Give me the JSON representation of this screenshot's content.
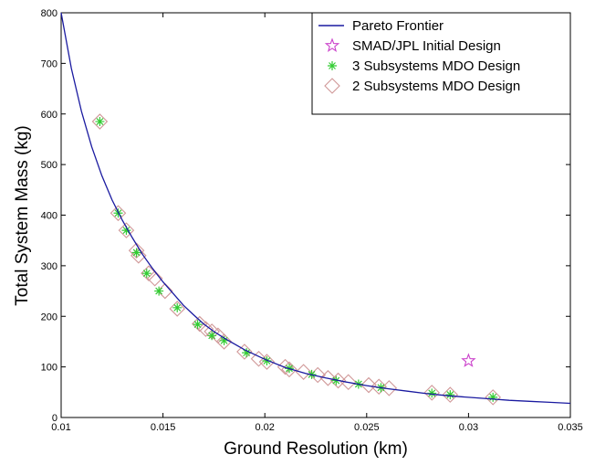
{
  "chart_data": {
    "type": "line",
    "title": "",
    "xlabel": "Ground Resolution (km)",
    "ylabel": "Total System Mass (kg)",
    "xlim": [
      0.01,
      0.035
    ],
    "ylim": [
      0,
      800
    ],
    "x_ticks": [
      "0.01",
      "0.015",
      "0.02",
      "0.025",
      "0.03",
      "0.035"
    ],
    "y_ticks": [
      "0",
      "100",
      "200",
      "300",
      "400",
      "500",
      "600",
      "700",
      "800"
    ],
    "x_tick_values": [
      0.01,
      0.015,
      0.02,
      0.025,
      0.03,
      0.035
    ],
    "y_tick_values": [
      0,
      100,
      200,
      300,
      400,
      500,
      600,
      700,
      800
    ],
    "grid": false,
    "legend_position": "top-right",
    "series": [
      {
        "name": "Pareto Frontier",
        "type": "line",
        "color": "#1a1aa0",
        "x": [
          0.01,
          0.0105,
          0.011,
          0.0115,
          0.012,
          0.0125,
          0.013,
          0.0135,
          0.014,
          0.0145,
          0.015,
          0.0155,
          0.016,
          0.0165,
          0.017,
          0.0175,
          0.018,
          0.019,
          0.02,
          0.021,
          0.022,
          0.023,
          0.024,
          0.025,
          0.026,
          0.027,
          0.028,
          0.029,
          0.03,
          0.031,
          0.032,
          0.033,
          0.034,
          0.035
        ],
        "y": [
          800,
          690,
          605,
          535,
          478,
          430,
          390,
          355,
          322,
          294,
          268,
          245,
          222,
          203,
          185,
          170,
          157,
          134,
          115,
          99,
          87,
          78,
          70,
          63,
          57,
          52,
          47,
          43,
          40,
          37,
          34,
          32,
          30,
          28
        ]
      },
      {
        "name": "SMAD/JPL Initial Design",
        "type": "scatter",
        "marker": "star",
        "color": "#cc44cc",
        "x": [
          0.03
        ],
        "y": [
          112
        ]
      },
      {
        "name": "3 Subsystems MDO Design",
        "type": "scatter",
        "marker": "asterisk",
        "color": "#33cc33",
        "x": [
          0.0119,
          0.0128,
          0.0132,
          0.0137,
          0.0142,
          0.0148,
          0.0157,
          0.0167,
          0.0174,
          0.018,
          0.0191,
          0.0201,
          0.0212,
          0.0223,
          0.0235,
          0.0246,
          0.0257,
          0.0282,
          0.0291,
          0.0312
        ],
        "y": [
          585,
          404,
          370,
          326,
          285,
          250,
          217,
          184,
          162,
          152,
          128,
          112,
          97,
          85,
          73,
          66,
          59,
          48,
          45,
          40
        ]
      },
      {
        "name": "2 Subsystems MDO Design",
        "type": "scatter",
        "marker": "diamond",
        "color": "#d09898",
        "x": [
          0.0119,
          0.0128,
          0.0132,
          0.0137,
          0.0138,
          0.0143,
          0.0146,
          0.0151,
          0.0157,
          0.0168,
          0.0171,
          0.0174,
          0.0177,
          0.018,
          0.019,
          0.0197,
          0.0201,
          0.021,
          0.0212,
          0.0219,
          0.0226,
          0.0231,
          0.0236,
          0.0241,
          0.0251,
          0.0256,
          0.0261,
          0.0282,
          0.0291,
          0.0312
        ],
        "y": [
          585,
          404,
          370,
          330,
          320,
          285,
          275,
          250,
          215,
          185,
          175,
          170,
          162,
          150,
          130,
          116,
          110,
          100,
          95,
          90,
          84,
          78,
          73,
          70,
          64,
          61,
          58,
          49,
          45,
          40
        ]
      }
    ]
  }
}
